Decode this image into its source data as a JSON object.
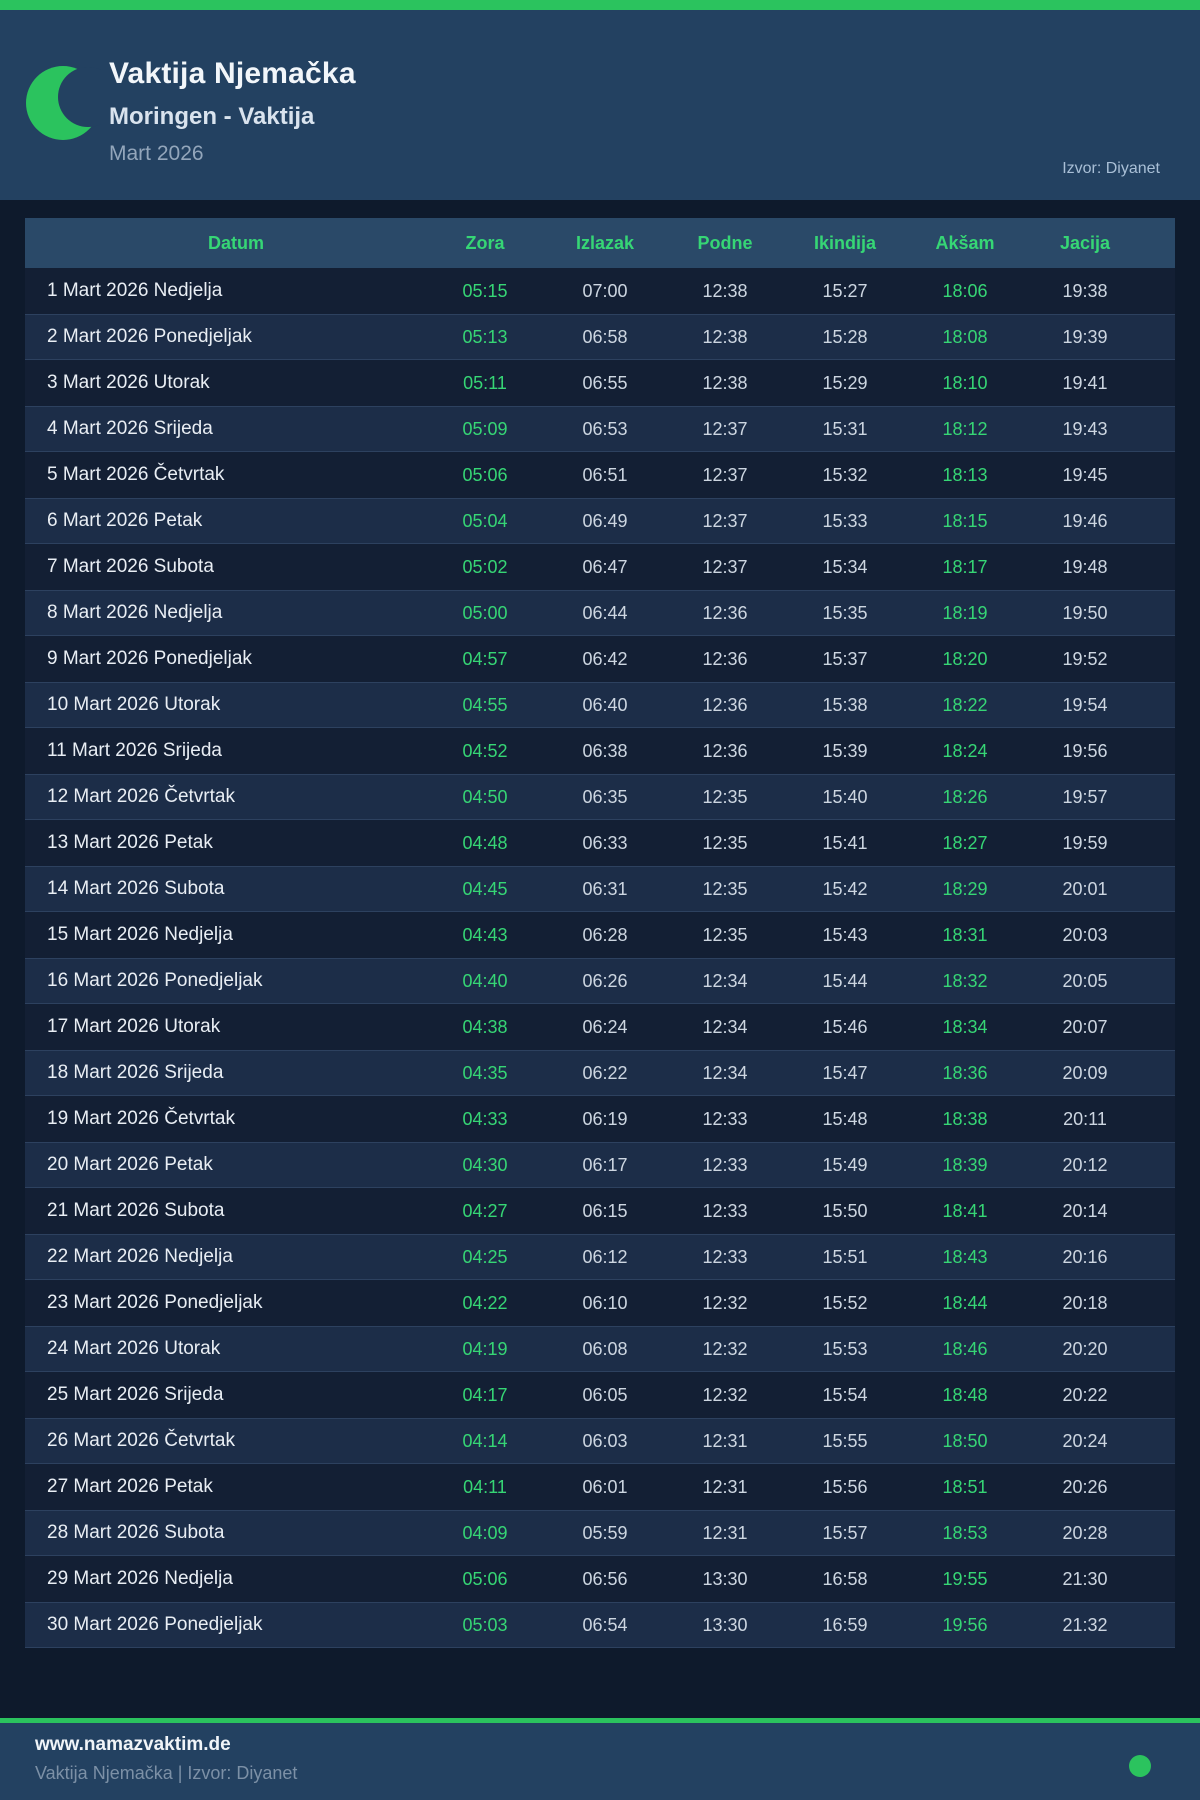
{
  "colors": {
    "accent_green": "#2bc35e",
    "text_green": "#36d675",
    "header_bg": "#234161",
    "page_bg": "#0e1a2c",
    "row_odd": "#131f34",
    "row_even": "#1c2d48",
    "table_header_bg": "#2a4968"
  },
  "header": {
    "moon_icon": "crescent-moon-icon",
    "title": "Vaktija Njemačka",
    "subtitle": "Moringen - Vaktija",
    "period": "Mart 2026",
    "source": "Izvor: Diyanet"
  },
  "table": {
    "columns": [
      "Datum",
      "Zora",
      "Izlazak",
      "Podne",
      "Ikindija",
      "Akšam",
      "Jacija"
    ],
    "green_columns": [
      "Zora",
      "Akšam"
    ],
    "rows": [
      {
        "date": "1 Mart 2026 Nedjelja",
        "zora": "05:15",
        "izlazak": "07:00",
        "podne": "12:38",
        "ikindija": "15:27",
        "aksam": "18:06",
        "jacija": "19:38"
      },
      {
        "date": "2 Mart 2026 Ponedjeljak",
        "zora": "05:13",
        "izlazak": "06:58",
        "podne": "12:38",
        "ikindija": "15:28",
        "aksam": "18:08",
        "jacija": "19:39"
      },
      {
        "date": "3 Mart 2026 Utorak",
        "zora": "05:11",
        "izlazak": "06:55",
        "podne": "12:38",
        "ikindija": "15:29",
        "aksam": "18:10",
        "jacija": "19:41"
      },
      {
        "date": "4 Mart 2026 Srijeda",
        "zora": "05:09",
        "izlazak": "06:53",
        "podne": "12:37",
        "ikindija": "15:31",
        "aksam": "18:12",
        "jacija": "19:43"
      },
      {
        "date": "5 Mart 2026 Četvrtak",
        "zora": "05:06",
        "izlazak": "06:51",
        "podne": "12:37",
        "ikindija": "15:32",
        "aksam": "18:13",
        "jacija": "19:45"
      },
      {
        "date": "6 Mart 2026 Petak",
        "zora": "05:04",
        "izlazak": "06:49",
        "podne": "12:37",
        "ikindija": "15:33",
        "aksam": "18:15",
        "jacija": "19:46"
      },
      {
        "date": "7 Mart 2026 Subota",
        "zora": "05:02",
        "izlazak": "06:47",
        "podne": "12:37",
        "ikindija": "15:34",
        "aksam": "18:17",
        "jacija": "19:48"
      },
      {
        "date": "8 Mart 2026 Nedjelja",
        "zora": "05:00",
        "izlazak": "06:44",
        "podne": "12:36",
        "ikindija": "15:35",
        "aksam": "18:19",
        "jacija": "19:50"
      },
      {
        "date": "9 Mart 2026 Ponedjeljak",
        "zora": "04:57",
        "izlazak": "06:42",
        "podne": "12:36",
        "ikindija": "15:37",
        "aksam": "18:20",
        "jacija": "19:52"
      },
      {
        "date": "10 Mart 2026 Utorak",
        "zora": "04:55",
        "izlazak": "06:40",
        "podne": "12:36",
        "ikindija": "15:38",
        "aksam": "18:22",
        "jacija": "19:54"
      },
      {
        "date": "11 Mart 2026 Srijeda",
        "zora": "04:52",
        "izlazak": "06:38",
        "podne": "12:36",
        "ikindija": "15:39",
        "aksam": "18:24",
        "jacija": "19:56"
      },
      {
        "date": "12 Mart 2026 Četvrtak",
        "zora": "04:50",
        "izlazak": "06:35",
        "podne": "12:35",
        "ikindija": "15:40",
        "aksam": "18:26",
        "jacija": "19:57"
      },
      {
        "date": "13 Mart 2026 Petak",
        "zora": "04:48",
        "izlazak": "06:33",
        "podne": "12:35",
        "ikindija": "15:41",
        "aksam": "18:27",
        "jacija": "19:59"
      },
      {
        "date": "14 Mart 2026 Subota",
        "zora": "04:45",
        "izlazak": "06:31",
        "podne": "12:35",
        "ikindija": "15:42",
        "aksam": "18:29",
        "jacija": "20:01"
      },
      {
        "date": "15 Mart 2026 Nedjelja",
        "zora": "04:43",
        "izlazak": "06:28",
        "podne": "12:35",
        "ikindija": "15:43",
        "aksam": "18:31",
        "jacija": "20:03"
      },
      {
        "date": "16 Mart 2026 Ponedjeljak",
        "zora": "04:40",
        "izlazak": "06:26",
        "podne": "12:34",
        "ikindija": "15:44",
        "aksam": "18:32",
        "jacija": "20:05"
      },
      {
        "date": "17 Mart 2026 Utorak",
        "zora": "04:38",
        "izlazak": "06:24",
        "podne": "12:34",
        "ikindija": "15:46",
        "aksam": "18:34",
        "jacija": "20:07"
      },
      {
        "date": "18 Mart 2026 Srijeda",
        "zora": "04:35",
        "izlazak": "06:22",
        "podne": "12:34",
        "ikindija": "15:47",
        "aksam": "18:36",
        "jacija": "20:09"
      },
      {
        "date": "19 Mart 2026 Četvrtak",
        "zora": "04:33",
        "izlazak": "06:19",
        "podne": "12:33",
        "ikindija": "15:48",
        "aksam": "18:38",
        "jacija": "20:11"
      },
      {
        "date": "20 Mart 2026 Petak",
        "zora": "04:30",
        "izlazak": "06:17",
        "podne": "12:33",
        "ikindija": "15:49",
        "aksam": "18:39",
        "jacija": "20:12"
      },
      {
        "date": "21 Mart 2026 Subota",
        "zora": "04:27",
        "izlazak": "06:15",
        "podne": "12:33",
        "ikindija": "15:50",
        "aksam": "18:41",
        "jacija": "20:14"
      },
      {
        "date": "22 Mart 2026 Nedjelja",
        "zora": "04:25",
        "izlazak": "06:12",
        "podne": "12:33",
        "ikindija": "15:51",
        "aksam": "18:43",
        "jacija": "20:16"
      },
      {
        "date": "23 Mart 2026 Ponedjeljak",
        "zora": "04:22",
        "izlazak": "06:10",
        "podne": "12:32",
        "ikindija": "15:52",
        "aksam": "18:44",
        "jacija": "20:18"
      },
      {
        "date": "24 Mart 2026 Utorak",
        "zora": "04:19",
        "izlazak": "06:08",
        "podne": "12:32",
        "ikindija": "15:53",
        "aksam": "18:46",
        "jacija": "20:20"
      },
      {
        "date": "25 Mart 2026 Srijeda",
        "zora": "04:17",
        "izlazak": "06:05",
        "podne": "12:32",
        "ikindija": "15:54",
        "aksam": "18:48",
        "jacija": "20:22"
      },
      {
        "date": "26 Mart 2026 Četvrtak",
        "zora": "04:14",
        "izlazak": "06:03",
        "podne": "12:31",
        "ikindija": "15:55",
        "aksam": "18:50",
        "jacija": "20:24"
      },
      {
        "date": "27 Mart 2026 Petak",
        "zora": "04:11",
        "izlazak": "06:01",
        "podne": "12:31",
        "ikindija": "15:56",
        "aksam": "18:51",
        "jacija": "20:26"
      },
      {
        "date": "28 Mart 2026 Subota",
        "zora": "04:09",
        "izlazak": "05:59",
        "podne": "12:31",
        "ikindija": "15:57",
        "aksam": "18:53",
        "jacija": "20:28"
      },
      {
        "date": "29 Mart 2026 Nedjelja",
        "zora": "05:06",
        "izlazak": "06:56",
        "podne": "13:30",
        "ikindija": "16:58",
        "aksam": "19:55",
        "jacija": "21:30"
      },
      {
        "date": "30 Mart 2026 Ponedjeljak",
        "zora": "05:03",
        "izlazak": "06:54",
        "podne": "13:30",
        "ikindija": "16:59",
        "aksam": "19:56",
        "jacija": "21:32"
      }
    ]
  },
  "footer": {
    "website": "www.namazvaktim.de",
    "tagline": "Vaktija Njemačka | Izvor: Diyanet"
  }
}
